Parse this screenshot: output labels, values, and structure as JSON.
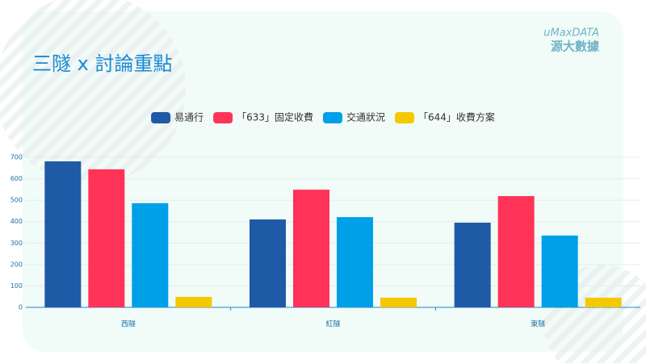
{
  "brand": {
    "name": "uMaxDATA",
    "subtitle": "源大數據"
  },
  "chart_data": {
    "type": "bar",
    "title": "三隧 x 討論重點",
    "categories": [
      "西隧",
      "紅隧",
      "東隧"
    ],
    "series": [
      {
        "name": "易通行",
        "color": "#1f5aa6",
        "values": [
          681,
          410,
          395
        ]
      },
      {
        "name": "「633」固定收費",
        "color": "#ff3358",
        "values": [
          644,
          549,
          519
        ]
      },
      {
        "name": "交通狀況",
        "color": "#00a0e9",
        "values": [
          486,
          421,
          335
        ]
      },
      {
        "name": "「644」收費方案",
        "color": "#f5c800",
        "values": [
          49,
          45,
          45
        ]
      }
    ],
    "ylim": [
      0,
      700
    ],
    "yticks": [
      0,
      100,
      200,
      300,
      400,
      500,
      600,
      700
    ],
    "grid": true
  }
}
